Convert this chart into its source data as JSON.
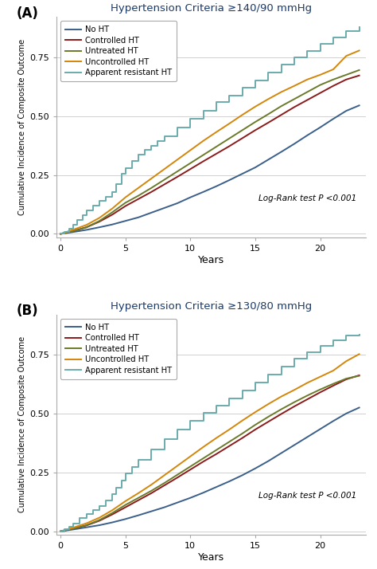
{
  "panel_A": {
    "title": "Hypertension Criteria ≥140/90 mmHg",
    "panel_label": "(A)",
    "curves": {
      "No HT": {
        "color": "#3a5f8a",
        "style": "smooth",
        "x": [
          0,
          1,
          2,
          3,
          4,
          5,
          6,
          7,
          8,
          9,
          10,
          11,
          12,
          13,
          14,
          15,
          16,
          17,
          18,
          19,
          20,
          21,
          22,
          23
        ],
        "y": [
          0.0,
          0.008,
          0.017,
          0.028,
          0.04,
          0.055,
          0.07,
          0.09,
          0.11,
          0.13,
          0.155,
          0.178,
          0.202,
          0.228,
          0.255,
          0.282,
          0.315,
          0.348,
          0.382,
          0.418,
          0.452,
          0.488,
          0.522,
          0.545
        ]
      },
      "Controlled HT": {
        "color": "#8b1a1a",
        "style": "smooth",
        "x": [
          0,
          1,
          2,
          3,
          4,
          5,
          6,
          7,
          8,
          9,
          10,
          11,
          12,
          13,
          14,
          15,
          16,
          17,
          18,
          19,
          20,
          21,
          22,
          23
        ],
        "y": [
          0.0,
          0.012,
          0.028,
          0.052,
          0.082,
          0.118,
          0.148,
          0.178,
          0.21,
          0.242,
          0.275,
          0.308,
          0.34,
          0.372,
          0.406,
          0.44,
          0.472,
          0.505,
          0.538,
          0.568,
          0.598,
          0.628,
          0.655,
          0.672
        ]
      },
      "Untreated HT": {
        "color": "#6b7a2a",
        "style": "smooth",
        "x": [
          0,
          1,
          2,
          3,
          4,
          5,
          6,
          7,
          8,
          9,
          10,
          11,
          12,
          13,
          14,
          15,
          16,
          17,
          18,
          19,
          20,
          21,
          22,
          23
        ],
        "y": [
          0.0,
          0.012,
          0.028,
          0.055,
          0.092,
          0.132,
          0.162,
          0.195,
          0.23,
          0.265,
          0.3,
          0.335,
          0.37,
          0.405,
          0.44,
          0.475,
          0.508,
          0.542,
          0.572,
          0.602,
          0.632,
          0.655,
          0.675,
          0.695
        ]
      },
      "Uncontrolled HT": {
        "color": "#d4860a",
        "style": "smooth",
        "x": [
          0,
          1,
          2,
          3,
          4,
          5,
          6,
          7,
          8,
          9,
          10,
          11,
          12,
          13,
          14,
          15,
          16,
          17,
          18,
          19,
          20,
          21,
          22,
          23
        ],
        "y": [
          0.0,
          0.018,
          0.038,
          0.068,
          0.108,
          0.155,
          0.195,
          0.235,
          0.275,
          0.315,
          0.355,
          0.395,
          0.432,
          0.468,
          0.505,
          0.54,
          0.572,
          0.602,
          0.628,
          0.655,
          0.675,
          0.698,
          0.755,
          0.778
        ]
      },
      "Apparent resistant HT": {
        "color": "#6aacac",
        "style": "step",
        "x": [
          0,
          0.3,
          0.7,
          1.0,
          1.3,
          1.7,
          2.0,
          2.5,
          3.0,
          3.5,
          4.0,
          4.3,
          4.7,
          5.0,
          5.5,
          6.0,
          6.5,
          7.0,
          7.5,
          8.0,
          9.0,
          10.0,
          11.0,
          12.0,
          13.0,
          14.0,
          15.0,
          16.0,
          17.0,
          18.0,
          19.0,
          20.0,
          21.0,
          22.0,
          23.0
        ],
        "y": [
          0.0,
          0.01,
          0.022,
          0.04,
          0.06,
          0.08,
          0.1,
          0.12,
          0.14,
          0.158,
          0.178,
          0.21,
          0.255,
          0.28,
          0.31,
          0.335,
          0.355,
          0.375,
          0.395,
          0.415,
          0.452,
          0.488,
          0.522,
          0.558,
          0.588,
          0.62,
          0.65,
          0.685,
          0.718,
          0.748,
          0.775,
          0.805,
          0.835,
          0.86,
          0.878
        ]
      }
    },
    "ylabel": "Cumulative Incidence of Composite Outcome",
    "xlabel": "Years",
    "ylim": [
      -0.015,
      0.92
    ],
    "xlim": [
      -0.3,
      23.5
    ],
    "yticks": [
      0.0,
      0.25,
      0.5,
      0.75
    ],
    "xticks": [
      0,
      5,
      10,
      15,
      20
    ],
    "annotation": "Log-Rank test P <0.001"
  },
  "panel_B": {
    "title": "Hypertension Criteria ≥130/80 mmHg",
    "panel_label": "(B)",
    "curves": {
      "No HT": {
        "color": "#3a5f8a",
        "style": "smooth",
        "x": [
          0,
          1,
          2,
          3,
          4,
          5,
          6,
          7,
          8,
          9,
          10,
          11,
          12,
          13,
          14,
          15,
          16,
          17,
          18,
          19,
          20,
          21,
          22,
          23
        ],
        "y": [
          0.0,
          0.008,
          0.017,
          0.026,
          0.038,
          0.052,
          0.068,
          0.085,
          0.102,
          0.122,
          0.142,
          0.164,
          0.188,
          0.212,
          0.238,
          0.267,
          0.298,
          0.332,
          0.366,
          0.4,
          0.434,
          0.468,
          0.5,
          0.525
        ]
      },
      "Controlled HT": {
        "color": "#8b1a1a",
        "style": "smooth",
        "x": [
          0,
          1,
          2,
          3,
          4,
          5,
          6,
          7,
          8,
          9,
          10,
          11,
          12,
          13,
          14,
          15,
          16,
          17,
          18,
          19,
          20,
          21,
          22,
          23
        ],
        "y": [
          0.0,
          0.012,
          0.025,
          0.045,
          0.072,
          0.102,
          0.132,
          0.162,
          0.195,
          0.228,
          0.262,
          0.296,
          0.328,
          0.362,
          0.396,
          0.432,
          0.465,
          0.498,
          0.53,
          0.56,
          0.59,
          0.618,
          0.645,
          0.662
        ]
      },
      "Untreated HT": {
        "color": "#6b7a2a",
        "style": "smooth",
        "x": [
          0,
          1,
          2,
          3,
          4,
          5,
          6,
          7,
          8,
          9,
          10,
          11,
          12,
          13,
          14,
          15,
          16,
          17,
          18,
          19,
          20,
          21,
          22,
          23
        ],
        "y": [
          0.0,
          0.012,
          0.026,
          0.048,
          0.078,
          0.112,
          0.142,
          0.172,
          0.205,
          0.24,
          0.275,
          0.31,
          0.345,
          0.38,
          0.415,
          0.452,
          0.486,
          0.518,
          0.548,
          0.576,
          0.602,
          0.626,
          0.648,
          0.66
        ]
      },
      "Uncontrolled HT": {
        "color": "#d4860a",
        "style": "smooth",
        "x": [
          0,
          1,
          2,
          3,
          4,
          5,
          6,
          7,
          8,
          9,
          10,
          11,
          12,
          13,
          14,
          15,
          16,
          17,
          18,
          19,
          20,
          21,
          22,
          23
        ],
        "y": [
          0.0,
          0.016,
          0.034,
          0.058,
          0.09,
          0.128,
          0.162,
          0.198,
          0.238,
          0.278,
          0.318,
          0.358,
          0.396,
          0.432,
          0.47,
          0.506,
          0.54,
          0.572,
          0.6,
          0.63,
          0.656,
          0.682,
          0.722,
          0.752
        ]
      },
      "Apparent resistant HT": {
        "color": "#6aacac",
        "style": "step",
        "x": [
          0,
          0.3,
          0.7,
          1.0,
          1.5,
          2.0,
          2.5,
          3.0,
          3.5,
          4.0,
          4.3,
          4.7,
          5.0,
          5.5,
          6.0,
          7.0,
          8.0,
          9.0,
          10.0,
          11.0,
          12.0,
          13.0,
          14.0,
          15.0,
          16.0,
          17.0,
          18.0,
          19.0,
          20.0,
          21.0,
          22.0,
          23.0
        ],
        "y": [
          0.0,
          0.008,
          0.018,
          0.032,
          0.055,
          0.072,
          0.09,
          0.108,
          0.132,
          0.158,
          0.185,
          0.215,
          0.245,
          0.272,
          0.302,
          0.348,
          0.392,
          0.432,
          0.468,
          0.502,
          0.535,
          0.565,
          0.598,
          0.632,
          0.665,
          0.7,
          0.732,
          0.76,
          0.788,
          0.812,
          0.832,
          0.835
        ]
      }
    },
    "ylabel": "Cumulative Incidence of Composite Outcome",
    "xlabel": "Years",
    "ylim": [
      -0.015,
      0.92
    ],
    "xlim": [
      -0.3,
      23.5
    ],
    "yticks": [
      0.0,
      0.25,
      0.5,
      0.75
    ],
    "xticks": [
      0,
      5,
      10,
      15,
      20
    ],
    "annotation": "Log-Rank test P <0.001"
  },
  "legend_order": [
    "No HT",
    "Controlled HT",
    "Untreated HT",
    "Uncontrolled HT",
    "Apparent resistant HT"
  ],
  "background_color": "#ffffff",
  "title_color": "#1a3a6b",
  "line_width": 1.4
}
